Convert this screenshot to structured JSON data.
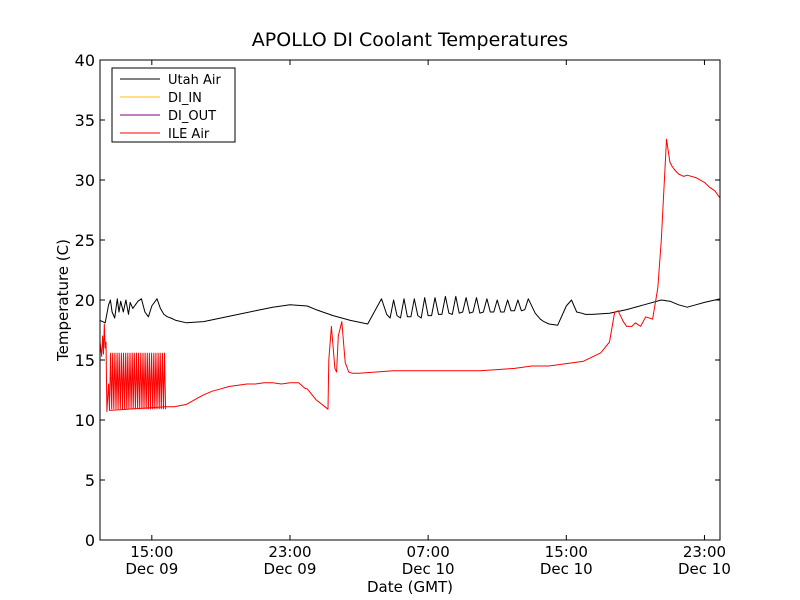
{
  "chart_data": {
    "type": "line",
    "title": "APOLLO DI Coolant Temperatures",
    "xlabel": "Date (GMT)",
    "ylabel": "Temperature (C)",
    "xunit": "hours since Dec 09 12:00 GMT",
    "xlim": [
      0,
      35.9
    ],
    "ylim": [
      0,
      40
    ],
    "yticks": [
      0,
      5,
      10,
      15,
      20,
      25,
      30,
      35,
      40
    ],
    "xticks": [
      {
        "x": 3,
        "time": "15:00",
        "date": "Dec 09"
      },
      {
        "x": 11,
        "time": "23:00",
        "date": "Dec 09"
      },
      {
        "x": 19,
        "time": "07:00",
        "date": "Dec 10"
      },
      {
        "x": 27,
        "time": "15:00",
        "date": "Dec 10"
      },
      {
        "x": 35,
        "time": "23:00",
        "date": "Dec 10"
      }
    ],
    "legend": {
      "position": "top-left",
      "entries": [
        {
          "name": "Utah Air",
          "color": "#000000"
        },
        {
          "name": "DI_IN",
          "color": "#ffbf00"
        },
        {
          "name": "DI_OUT",
          "color": "#800080"
        },
        {
          "name": "ILE Air",
          "color": "#ff0000"
        }
      ]
    },
    "series": [
      {
        "name": "Utah Air",
        "color": "#000000",
        "x": [
          0,
          0.3,
          0.5,
          0.6,
          0.7,
          0.85,
          1.0,
          1.1,
          1.2,
          1.35,
          1.5,
          1.65,
          1.75,
          1.9,
          2.05,
          2.2,
          2.4,
          2.6,
          2.8,
          3.0,
          3.3,
          3.5,
          3.7,
          3.9,
          4.1,
          4.4,
          5.0,
          6.0,
          7.0,
          8.0,
          9.0,
          10.0,
          11.0,
          12.0,
          12.5,
          13.5,
          14.5,
          15.5,
          16.3,
          16.6,
          16.8,
          17.0,
          17.2,
          17.4,
          17.6,
          17.8,
          18.0,
          18.2,
          18.4,
          18.6,
          18.8,
          19.0,
          19.2,
          19.4,
          19.6,
          19.8,
          20.0,
          20.2,
          20.4,
          20.6,
          20.8,
          21.0,
          21.2,
          21.4,
          21.6,
          21.8,
          22.0,
          22.2,
          22.4,
          22.6,
          22.8,
          23.0,
          23.2,
          23.4,
          23.6,
          23.8,
          24.0,
          24.2,
          24.4,
          24.6,
          24.8,
          25.2,
          25.5,
          25.7,
          26.0,
          26.5,
          27.0,
          27.3,
          27.6,
          27.9,
          28.1,
          28.5,
          29.5,
          30.5,
          31.5,
          32.5,
          33.0,
          33.5,
          34.0,
          34.5,
          35.0,
          35.9
        ],
        "y": [
          18.3,
          18.1,
          19.6,
          20.0,
          19.0,
          18.5,
          20.1,
          19.0,
          19.9,
          19.0,
          20.0,
          18.8,
          19.8,
          19.3,
          19.6,
          19.9,
          20.1,
          19.0,
          18.6,
          19.5,
          20.1,
          19.3,
          18.8,
          18.6,
          18.5,
          18.3,
          18.1,
          18.2,
          18.5,
          18.8,
          19.1,
          19.4,
          19.6,
          19.5,
          19.2,
          18.7,
          18.3,
          18.0,
          20.1,
          18.8,
          18.5,
          20.0,
          18.7,
          18.5,
          20.1,
          18.6,
          18.6,
          20.1,
          18.7,
          18.5,
          20.2,
          18.7,
          18.7,
          20.2,
          18.8,
          18.8,
          20.3,
          18.9,
          18.8,
          20.3,
          18.9,
          19.0,
          20.2,
          18.9,
          19.0,
          20.2,
          18.9,
          19.0,
          20.1,
          19.0,
          19.0,
          20.0,
          19.0,
          19.0,
          20.0,
          19.1,
          19.1,
          20.0,
          19.1,
          19.2,
          20.1,
          18.9,
          18.4,
          18.2,
          18.0,
          17.9,
          19.5,
          20.0,
          19.0,
          18.9,
          18.8,
          18.8,
          18.9,
          19.2,
          19.6,
          20.0,
          19.9,
          19.6,
          19.4,
          19.6,
          19.8,
          20.1
        ]
      },
      {
        "name": "ILE Air",
        "color": "#ff0000",
        "x": [
          0,
          0.1,
          0.15,
          0.2,
          0.25,
          0.3,
          0.35,
          0.4,
          0.45,
          0.5,
          0.55,
          3.8,
          4.3,
          5.0,
          5.5,
          6.0,
          6.5,
          7.0,
          7.5,
          8.0,
          8.5,
          9.0,
          9.5,
          10.0,
          10.5,
          11.0,
          11.5,
          11.9,
          12.0,
          12.5,
          13.2,
          13.25,
          13.4,
          13.6,
          13.7,
          13.8,
          14.0,
          14.2,
          14.4,
          14.6,
          15.0,
          16.0,
          17.0,
          18.0,
          19.0,
          20.0,
          21.0,
          22.0,
          23.0,
          24.0,
          25.0,
          25.5,
          26.0,
          27.0,
          28.0,
          29.0,
          29.5,
          29.8,
          30.0,
          30.3,
          30.5,
          30.8,
          31.0,
          31.3,
          31.6,
          32.0,
          32.3,
          32.5,
          32.8,
          33.0,
          33.1,
          33.3,
          33.5,
          33.8,
          34.0,
          34.5,
          35.0,
          35.3,
          35.6,
          35.9
        ],
        "y": [
          16.5,
          15.3,
          17.0,
          15.5,
          18.0,
          16.0,
          16.5,
          10.7,
          12.0,
          13.0,
          10.8,
          11.1,
          11.1,
          11.3,
          11.7,
          12.1,
          12.4,
          12.6,
          12.8,
          12.9,
          13.0,
          13.0,
          13.1,
          13.1,
          13.0,
          13.1,
          13.1,
          12.6,
          12.6,
          11.7,
          10.9,
          15.0,
          17.8,
          14.3,
          14.0,
          17.0,
          18.2,
          14.8,
          14.0,
          13.9,
          13.9,
          14.0,
          14.1,
          14.1,
          14.1,
          14.1,
          14.1,
          14.1,
          14.2,
          14.3,
          14.5,
          14.5,
          14.5,
          14.7,
          14.9,
          15.6,
          16.5,
          19.0,
          19.1,
          18.2,
          17.8,
          17.8,
          18.1,
          17.8,
          18.6,
          18.4,
          21.0,
          25.0,
          33.4,
          31.5,
          31.2,
          30.8,
          30.5,
          30.3,
          30.4,
          30.2,
          29.8,
          29.4,
          29.1,
          28.5
        ]
      }
    ],
    "oscillation_bands": [
      {
        "series": "ILE Air",
        "x_start": 0.55,
        "x_end": 3.8,
        "y_low": 10.9,
        "y_high": 15.6
      }
    ]
  }
}
